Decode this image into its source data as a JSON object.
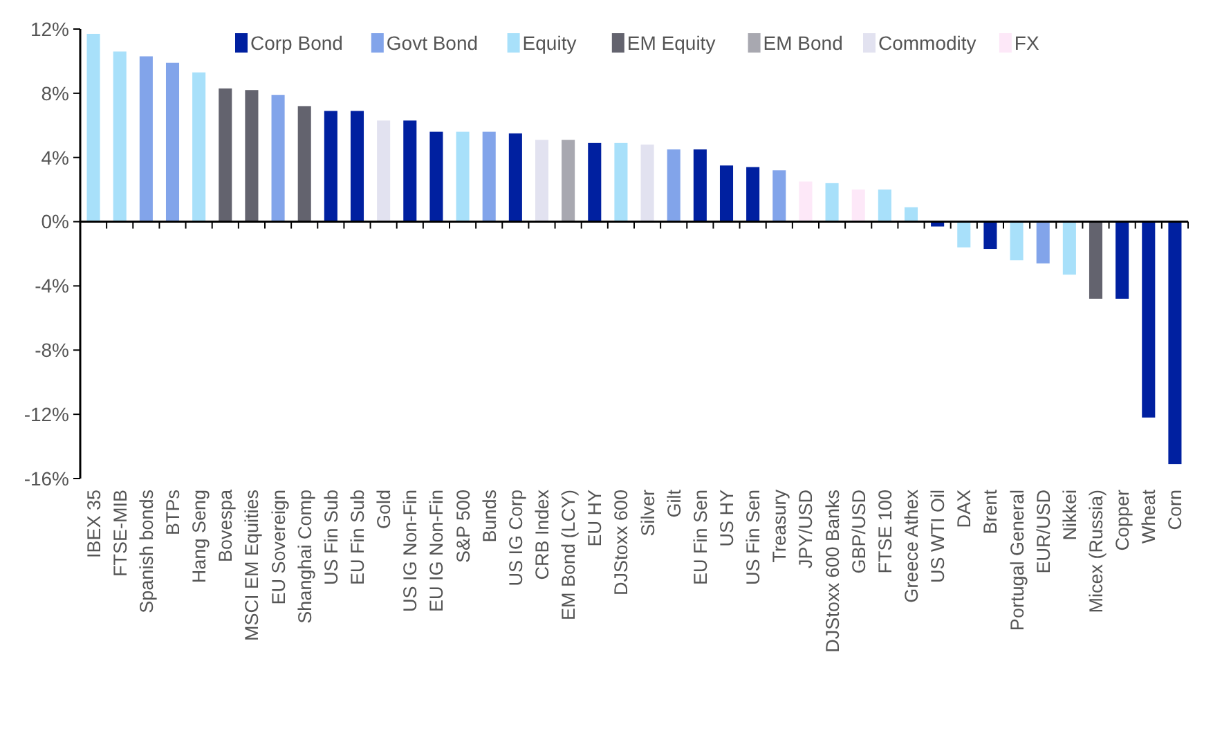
{
  "chart_data": {
    "type": "bar",
    "categories": [
      "IBEX 35",
      "FTSE-MIB",
      "Spanish bonds",
      "BTPs",
      "Hang Seng",
      "Bovespa",
      "MSCI EM Equities",
      "EU Sovereign",
      "Shanghai Comp",
      "US Fin Sub",
      "EU Fin Sub",
      "Gold",
      "US IG Non-Fin",
      "EU IG Non-Fin",
      "S&P 500",
      "Bunds",
      "US IG Corp",
      "CRB Index",
      "EM Bond (LCY)",
      "EU HY",
      "DJStoxx 600",
      "Silver",
      "Gilt",
      "EU Fin Sen",
      "US HY",
      "US Fin Sen",
      "Treasury",
      "JPY/USD",
      "DJStoxx 600 Banks",
      "GBP/USD",
      "FTSE 100",
      "Greece Athex",
      "US WTI Oil",
      "DAX",
      "Brent",
      "Portugal General",
      "EUR/USD",
      "Nikkei",
      "Micex (Russia)",
      "Copper",
      "Wheat",
      "Corn"
    ],
    "series": [
      {
        "name": "Corp Bond",
        "color": "#0020a0",
        "values": [
          null,
          null,
          null,
          null,
          null,
          null,
          null,
          null,
          null,
          6.9,
          6.9,
          null,
          6.3,
          5.6,
          null,
          null,
          5.5,
          null,
          null,
          4.9,
          null,
          null,
          null,
          4.5,
          3.5,
          3.4,
          null,
          null,
          null,
          null,
          null,
          null,
          -0.3,
          null,
          -1.7,
          null,
          null,
          null,
          null,
          -4.8,
          -12.2,
          -15.1
        ]
      },
      {
        "name": "Govt Bond",
        "color": "#82a4ea",
        "values": [
          null,
          null,
          10.3,
          9.9,
          null,
          null,
          null,
          7.9,
          null,
          null,
          null,
          null,
          null,
          null,
          null,
          5.6,
          null,
          null,
          null,
          null,
          null,
          null,
          4.5,
          null,
          null,
          null,
          3.2,
          null,
          null,
          null,
          null,
          null,
          null,
          null,
          null,
          null,
          -2.6,
          null,
          null,
          null,
          null,
          null
        ]
      },
      {
        "name": "Equity",
        "color": "#a8e0fa",
        "values": [
          11.7,
          10.6,
          null,
          null,
          9.3,
          null,
          null,
          null,
          null,
          null,
          null,
          null,
          null,
          null,
          5.6,
          null,
          null,
          null,
          null,
          null,
          4.9,
          null,
          null,
          null,
          null,
          null,
          null,
          null,
          2.4,
          null,
          2.0,
          0.9,
          null,
          -1.6,
          null,
          -2.4,
          null,
          -3.3,
          null,
          null,
          null,
          null
        ]
      },
      {
        "name": "EM Equity",
        "color": "#63636e",
        "values": [
          null,
          null,
          null,
          null,
          null,
          8.3,
          8.2,
          null,
          7.2,
          null,
          null,
          null,
          null,
          null,
          null,
          null,
          null,
          null,
          null,
          null,
          null,
          null,
          null,
          null,
          null,
          null,
          null,
          null,
          null,
          null,
          null,
          null,
          null,
          null,
          null,
          null,
          null,
          null,
          -4.8,
          null,
          null,
          null
        ]
      },
      {
        "name": "EM Bond",
        "color": "#a8a8b0",
        "values": [
          null,
          null,
          null,
          null,
          null,
          null,
          null,
          null,
          null,
          null,
          null,
          null,
          null,
          null,
          null,
          null,
          null,
          null,
          5.1,
          null,
          null,
          null,
          null,
          null,
          null,
          null,
          null,
          null,
          null,
          null,
          null,
          null,
          null,
          null,
          null,
          null,
          null,
          null,
          null,
          null,
          null,
          null
        ]
      },
      {
        "name": "Commodity",
        "color": "#e2e2f0",
        "values": [
          null,
          null,
          null,
          null,
          null,
          null,
          null,
          null,
          null,
          null,
          null,
          6.3,
          null,
          null,
          null,
          null,
          null,
          5.1,
          null,
          null,
          null,
          4.8,
          null,
          null,
          null,
          null,
          null,
          null,
          null,
          null,
          null,
          null,
          null,
          null,
          null,
          null,
          null,
          null,
          null,
          null,
          null,
          null
        ]
      },
      {
        "name": "FX",
        "color": "#fde8f8",
        "values": [
          null,
          null,
          null,
          null,
          null,
          null,
          null,
          null,
          null,
          null,
          null,
          null,
          null,
          null,
          null,
          null,
          null,
          null,
          null,
          null,
          null,
          null,
          null,
          null,
          null,
          null,
          null,
          2.5,
          null,
          2.0,
          null,
          null,
          null,
          null,
          null,
          null,
          null,
          null,
          null,
          null,
          null,
          null
        ]
      }
    ],
    "ylim": [
      -16,
      12
    ],
    "yticks": [
      {
        "value": -16,
        "label": "-16%"
      },
      {
        "value": -12,
        "label": "-12%"
      },
      {
        "value": -8,
        "label": "-8%"
      },
      {
        "value": -4,
        "label": "-4%"
      },
      {
        "value": 0,
        "label": "0%"
      },
      {
        "value": 4,
        "label": "4%"
      },
      {
        "value": 8,
        "label": "8%"
      },
      {
        "value": 12,
        "label": "12%"
      }
    ],
    "legend": "top"
  }
}
